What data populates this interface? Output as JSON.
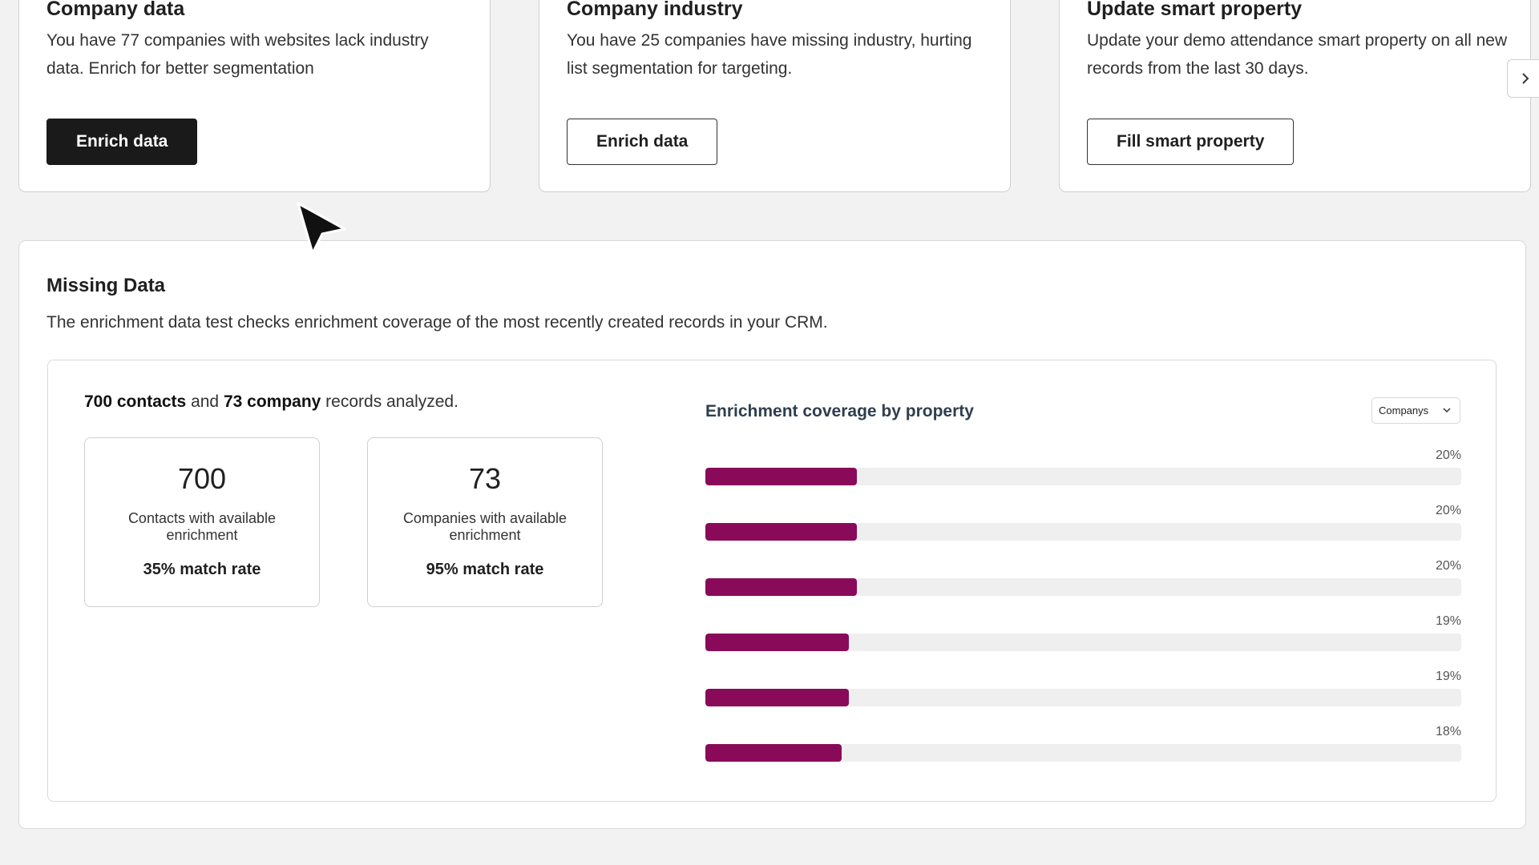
{
  "cards": [
    {
      "title": "Company data",
      "description": "You have 77 companies with websites lack industry data. Enrich for better segmentation",
      "button": "Enrich data"
    },
    {
      "title": "Company industry",
      "description": "You have 25 companies have missing industry, hurting list segmentation for targeting.",
      "button": "Enrich data"
    },
    {
      "title": "Update smart property",
      "description": "Update your demo attendance smart property on all new records from the last 30 days.",
      "button": "Fill smart property"
    }
  ],
  "missing_data": {
    "title": "Missing Data",
    "description": "The enrichment data test checks enrichment coverage of the most recently created records in your CRM.",
    "analyzed": {
      "contacts": "700 contacts",
      "and": " and ",
      "company": "73 company",
      "suffix": " records analyzed."
    },
    "stats": [
      {
        "value": "700",
        "label": "Contacts with available enrichment",
        "rate": "35% match rate"
      },
      {
        "value": "73",
        "label": "Companies with available enrichment",
        "rate": "95% match rate"
      }
    ],
    "chart_title": "Enrichment coverage by property",
    "dropdown": {
      "selected": "Companys",
      "icon": "chevron-down-icon"
    }
  },
  "colors": {
    "bar": "#8a0a5a",
    "track": "#efefef",
    "primary_button": "#1a1a1a"
  },
  "chart_data": {
    "type": "bar",
    "orientation": "horizontal",
    "title": "Enrichment coverage by property",
    "values": [
      20,
      20,
      20,
      19,
      19,
      18
    ],
    "labels": [
      "20%",
      "20%",
      "20%",
      "19%",
      "19%",
      "18%"
    ],
    "xlim": [
      0,
      100
    ]
  }
}
